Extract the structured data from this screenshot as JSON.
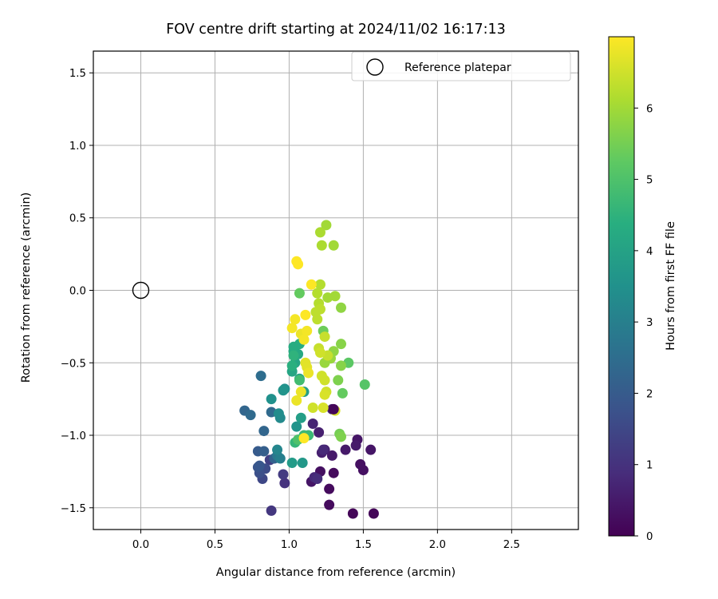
{
  "chart_data": {
    "type": "scatter",
    "title": "FOV centre drift starting at 2024/11/02 16:17:13",
    "xlabel": "Angular distance from reference (arcmin)",
    "ylabel": "Rotation from reference (arcmin)",
    "xlim": [
      -0.32,
      2.95
    ],
    "ylim": [
      -1.65,
      1.65
    ],
    "x_ticks": [
      0.0,
      0.5,
      1.0,
      1.5,
      2.0,
      2.5
    ],
    "x_tick_labels": [
      "0.0",
      "0.5",
      "1.0",
      "1.5",
      "2.0",
      "2.5"
    ],
    "y_ticks": [
      1.5,
      1.0,
      0.5,
      0.0,
      -0.5,
      -1.0,
      -1.5
    ],
    "y_tick_labels": [
      "1.5",
      "1.0",
      "0.5",
      "0.0",
      "−0.5",
      "−1.0",
      "−1.5"
    ],
    "grid": true,
    "legend": {
      "position": "top-right",
      "entries": [
        {
          "label": "Reference platepar",
          "marker": "open-circle"
        }
      ]
    },
    "reference_point": {
      "x": 0.0,
      "y": 0.0
    },
    "colorbar": {
      "label": "Hours from first FF file",
      "colormap": "viridis",
      "range": [
        0,
        7.0
      ],
      "ticks": [
        0,
        1,
        2,
        3,
        4,
        5,
        6
      ],
      "tick_labels": [
        "0",
        "1",
        "2",
        "3",
        "4",
        "5",
        "6"
      ]
    },
    "points": [
      {
        "x": 1.43,
        "y": -1.54,
        "c": 0.1
      },
      {
        "x": 1.57,
        "y": -1.54,
        "c": 0.1
      },
      {
        "x": 1.27,
        "y": -1.48,
        "c": 0.2
      },
      {
        "x": 1.27,
        "y": -1.37,
        "c": 0.2
      },
      {
        "x": 1.3,
        "y": -1.26,
        "c": 0.2
      },
      {
        "x": 1.5,
        "y": -1.24,
        "c": 0.3
      },
      {
        "x": 1.48,
        "y": -1.2,
        "c": 0.3
      },
      {
        "x": 1.21,
        "y": -1.25,
        "c": 0.3
      },
      {
        "x": 1.15,
        "y": -1.32,
        "c": 0.4
      },
      {
        "x": 1.55,
        "y": -1.1,
        "c": 0.4
      },
      {
        "x": 1.46,
        "y": -1.03,
        "c": 0.4
      },
      {
        "x": 1.45,
        "y": -1.07,
        "c": 0.5
      },
      {
        "x": 1.38,
        "y": -1.1,
        "c": 0.5
      },
      {
        "x": 1.29,
        "y": -1.14,
        "c": 0.5
      },
      {
        "x": 1.24,
        "y": -1.1,
        "c": 0.6
      },
      {
        "x": 1.22,
        "y": -1.12,
        "c": 0.6
      },
      {
        "x": 1.2,
        "y": -0.98,
        "c": 0.6
      },
      {
        "x": 1.16,
        "y": -0.92,
        "c": 0.7
      },
      {
        "x": 1.29,
        "y": -0.82,
        "c": 0.7
      },
      {
        "x": 1.23,
        "y": -1.1,
        "c": 0.8
      },
      {
        "x": 1.17,
        "y": -1.29,
        "c": 0.8
      },
      {
        "x": 1.19,
        "y": -1.3,
        "c": 0.9
      },
      {
        "x": 0.97,
        "y": -1.33,
        "c": 1.0
      },
      {
        "x": 0.88,
        "y": -1.52,
        "c": 1.1
      },
      {
        "x": 0.96,
        "y": -1.27,
        "c": 1.2
      },
      {
        "x": 0.87,
        "y": -1.17,
        "c": 1.3
      },
      {
        "x": 0.82,
        "y": -1.3,
        "c": 1.5
      },
      {
        "x": 0.84,
        "y": -1.23,
        "c": 1.6
      },
      {
        "x": 0.8,
        "y": -1.26,
        "c": 1.7
      },
      {
        "x": 0.79,
        "y": -1.22,
        "c": 1.8
      },
      {
        "x": 0.8,
        "y": -1.21,
        "c": 1.9
      },
      {
        "x": 0.79,
        "y": -1.11,
        "c": 2.0
      },
      {
        "x": 0.83,
        "y": -1.11,
        "c": 2.1
      },
      {
        "x": 0.9,
        "y": -1.16,
        "c": 2.2
      },
      {
        "x": 0.83,
        "y": -0.97,
        "c": 2.3
      },
      {
        "x": 0.7,
        "y": -0.83,
        "c": 2.3
      },
      {
        "x": 0.74,
        "y": -0.86,
        "c": 2.4
      },
      {
        "x": 0.88,
        "y": -0.84,
        "c": 2.4
      },
      {
        "x": 0.81,
        "y": -0.59,
        "c": 2.5
      },
      {
        "x": 0.92,
        "y": -1.14,
        "c": 2.8
      },
      {
        "x": 0.94,
        "y": -1.16,
        "c": 3.0
      },
      {
        "x": 0.92,
        "y": -1.1,
        "c": 3.2
      },
      {
        "x": 0.94,
        "y": -0.88,
        "c": 3.3
      },
      {
        "x": 0.93,
        "y": -0.85,
        "c": 3.4
      },
      {
        "x": 0.88,
        "y": -0.75,
        "c": 3.5
      },
      {
        "x": 0.97,
        "y": -0.68,
        "c": 3.5
      },
      {
        "x": 0.96,
        "y": -0.69,
        "c": 3.6
      },
      {
        "x": 1.05,
        "y": -0.94,
        "c": 3.6
      },
      {
        "x": 1.09,
        "y": -1.19,
        "c": 3.7
      },
      {
        "x": 1.02,
        "y": -1.19,
        "c": 3.8
      },
      {
        "x": 1.08,
        "y": -0.88,
        "c": 3.9
      },
      {
        "x": 1.1,
        "y": -0.7,
        "c": 3.9
      },
      {
        "x": 1.07,
        "y": -0.61,
        "c": 4.0
      },
      {
        "x": 1.02,
        "y": -0.56,
        "c": 4.1
      },
      {
        "x": 1.04,
        "y": -0.5,
        "c": 4.1
      },
      {
        "x": 1.06,
        "y": -0.44,
        "c": 4.2
      },
      {
        "x": 1.03,
        "y": -0.42,
        "c": 4.2
      },
      {
        "x": 1.03,
        "y": -0.39,
        "c": 4.3
      },
      {
        "x": 1.07,
        "y": -0.37,
        "c": 4.3
      },
      {
        "x": 1.02,
        "y": -0.52,
        "c": 4.4
      },
      {
        "x": 1.03,
        "y": -0.45,
        "c": 4.5
      },
      {
        "x": 1.04,
        "y": -1.05,
        "c": 4.6
      },
      {
        "x": 1.1,
        "y": -1.0,
        "c": 4.7
      },
      {
        "x": 1.13,
        "y": -1.0,
        "c": 4.7
      },
      {
        "x": 1.07,
        "y": -0.62,
        "c": 4.8
      },
      {
        "x": 1.06,
        "y": -1.03,
        "c": 5.0
      },
      {
        "x": 1.51,
        "y": -0.65,
        "c": 5.1
      },
      {
        "x": 1.4,
        "y": -0.5,
        "c": 5.2
      },
      {
        "x": 1.36,
        "y": -0.71,
        "c": 5.3
      },
      {
        "x": 1.07,
        "y": -0.02,
        "c": 5.3
      },
      {
        "x": 1.23,
        "y": -0.28,
        "c": 5.4
      },
      {
        "x": 1.34,
        "y": -0.99,
        "c": 5.5
      },
      {
        "x": 1.35,
        "y": -1.01,
        "c": 5.6
      },
      {
        "x": 1.33,
        "y": -0.62,
        "c": 5.6
      },
      {
        "x": 1.35,
        "y": -0.52,
        "c": 5.7
      },
      {
        "x": 1.35,
        "y": -0.37,
        "c": 5.7
      },
      {
        "x": 1.35,
        "y": -0.12,
        "c": 5.8
      },
      {
        "x": 1.3,
        "y": -0.42,
        "c": 5.8
      },
      {
        "x": 1.28,
        "y": -0.47,
        "c": 5.9
      },
      {
        "x": 1.24,
        "y": -0.5,
        "c": 5.9
      },
      {
        "x": 1.31,
        "y": -0.04,
        "c": 6.0
      },
      {
        "x": 1.26,
        "y": -0.05,
        "c": 6.0
      },
      {
        "x": 1.25,
        "y": 0.45,
        "c": 6.0
      },
      {
        "x": 1.3,
        "y": 0.31,
        "c": 6.0
      },
      {
        "x": 1.22,
        "y": 0.31,
        "c": 6.1
      },
      {
        "x": 1.21,
        "y": 0.4,
        "c": 6.1
      },
      {
        "x": 1.21,
        "y": 0.04,
        "c": 6.2
      },
      {
        "x": 1.19,
        "y": -0.02,
        "c": 6.2
      },
      {
        "x": 1.2,
        "y": -0.09,
        "c": 6.2
      },
      {
        "x": 1.21,
        "y": -0.13,
        "c": 6.3
      },
      {
        "x": 1.18,
        "y": -0.15,
        "c": 6.3
      },
      {
        "x": 1.19,
        "y": -0.2,
        "c": 6.3
      },
      {
        "x": 1.24,
        "y": -0.32,
        "c": 6.4
      },
      {
        "x": 1.26,
        "y": -0.45,
        "c": 6.4
      },
      {
        "x": 1.2,
        "y": -0.4,
        "c": 6.4
      },
      {
        "x": 1.21,
        "y": -0.43,
        "c": 6.5
      },
      {
        "x": 1.24,
        "y": -0.62,
        "c": 6.5
      },
      {
        "x": 1.22,
        "y": -0.59,
        "c": 6.5
      },
      {
        "x": 1.25,
        "y": -0.7,
        "c": 6.5
      },
      {
        "x": 1.24,
        "y": -0.72,
        "c": 6.6
      },
      {
        "x": 1.23,
        "y": -0.81,
        "c": 6.6
      },
      {
        "x": 1.31,
        "y": -0.83,
        "c": 6.6
      },
      {
        "x": 1.11,
        "y": -0.5,
        "c": 6.7
      },
      {
        "x": 1.12,
        "y": -0.53,
        "c": 6.7
      },
      {
        "x": 1.13,
        "y": -0.57,
        "c": 6.8
      },
      {
        "x": 1.08,
        "y": -0.7,
        "c": 6.8
      },
      {
        "x": 1.05,
        "y": -0.76,
        "c": 6.8
      },
      {
        "x": 1.08,
        "y": -0.3,
        "c": 6.8
      },
      {
        "x": 1.12,
        "y": -0.28,
        "c": 6.9
      },
      {
        "x": 1.1,
        "y": -0.34,
        "c": 6.9
      },
      {
        "x": 1.02,
        "y": -0.26,
        "c": 6.9
      },
      {
        "x": 1.04,
        "y": -0.2,
        "c": 6.9
      },
      {
        "x": 1.11,
        "y": -0.17,
        "c": 7.0
      },
      {
        "x": 1.15,
        "y": 0.04,
        "c": 7.0
      },
      {
        "x": 1.06,
        "y": 0.18,
        "c": 7.0
      },
      {
        "x": 1.05,
        "y": 0.2,
        "c": 7.0
      },
      {
        "x": 1.1,
        "y": -1.02,
        "c": 7.0
      },
      {
        "x": 1.16,
        "y": -0.81,
        "c": 6.5
      },
      {
        "x": 1.3,
        "y": -0.82,
        "c": 0.1
      }
    ]
  }
}
